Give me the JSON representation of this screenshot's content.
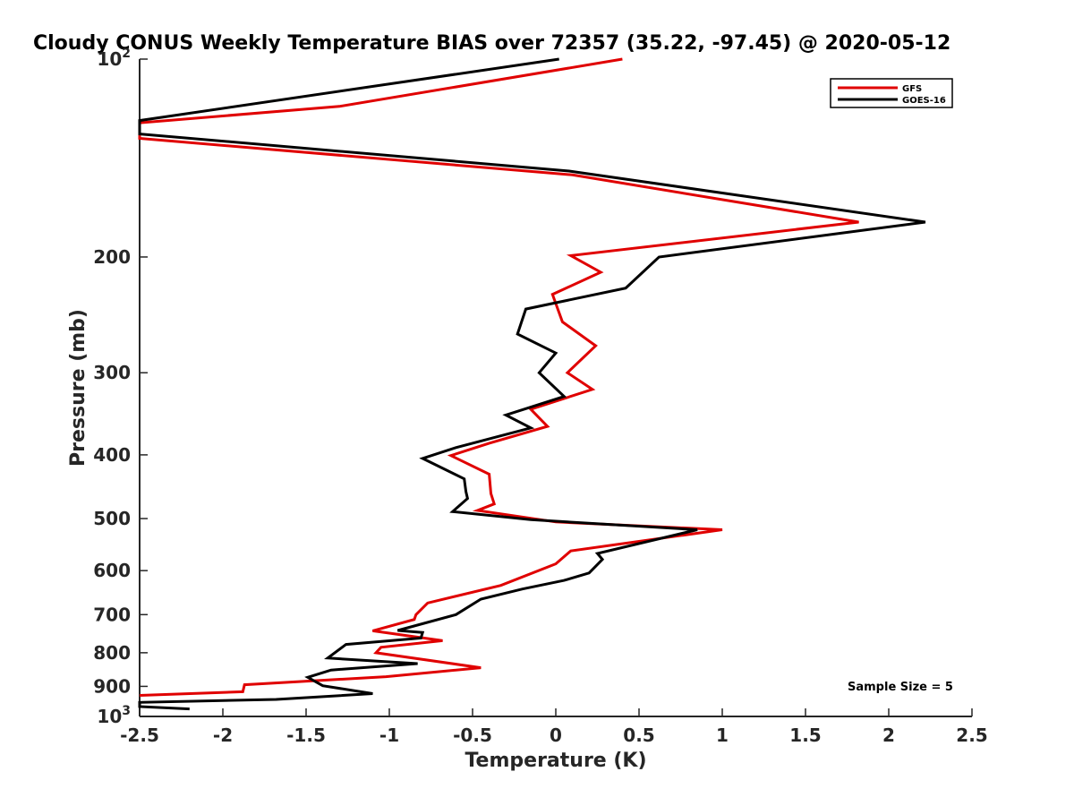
{
  "chart_data": {
    "type": "line",
    "title": "Cloudy CONUS Weekly Temperature BIAS over 72357 (35.22, -97.45) @ 2020-05-12",
    "xlabel": "Temperature (K)",
    "ylabel": "Pressure (mb)",
    "xlim": [
      -2.5,
      2.5
    ],
    "ylim": [
      100,
      1000
    ],
    "yscale": "log",
    "y_reversed": true,
    "grid": false,
    "legend_position": "top-right",
    "x_ticks": [
      -2.5,
      -2,
      -1.5,
      -1,
      -0.5,
      0,
      0.5,
      1,
      1.5,
      2,
      2.5
    ],
    "x_tick_labels": [
      "-2.5",
      "-2",
      "-1.5",
      "-1",
      "-0.5",
      "0",
      "0.5",
      "1",
      "1.5",
      "2",
      "2.5"
    ],
    "y_ticks": [
      100,
      200,
      300,
      400,
      500,
      600,
      700,
      800,
      900,
      1000
    ],
    "y_tick_labels": [
      {
        "base": "10",
        "exp": "2"
      },
      {
        "base": "200",
        "exp": ""
      },
      {
        "base": "300",
        "exp": ""
      },
      {
        "base": "400",
        "exp": ""
      },
      {
        "base": "500",
        "exp": ""
      },
      {
        "base": "600",
        "exp": ""
      },
      {
        "base": "700",
        "exp": ""
      },
      {
        "base": "800",
        "exp": ""
      },
      {
        "base": "900",
        "exp": ""
      },
      {
        "base": "10",
        "exp": "3"
      }
    ],
    "annotation": "Sample Size = 5",
    "series": [
      {
        "name": "GFS",
        "color": "#e00000",
        "points": [
          [
            0.4,
            100
          ],
          [
            -1.3,
            118
          ],
          [
            -2.5,
            125
          ],
          [
            -2.5,
            132
          ],
          [
            0.1,
            150
          ],
          [
            1.82,
            177
          ],
          [
            0.09,
            199
          ],
          [
            0.27,
            211
          ],
          [
            -0.02,
            228
          ],
          [
            0.04,
            251
          ],
          [
            0.24,
            273
          ],
          [
            0.07,
            300
          ],
          [
            0.22,
            318
          ],
          [
            -0.15,
            341
          ],
          [
            -0.05,
            362
          ],
          [
            -0.4,
            384
          ],
          [
            -0.63,
            401
          ],
          [
            -0.4,
            428
          ],
          [
            -0.39,
            458
          ],
          [
            -0.37,
            475
          ],
          [
            -0.47,
            486
          ],
          [
            0.0,
            506
          ],
          [
            1.0,
            520
          ],
          [
            0.09,
            560
          ],
          [
            0.0,
            586
          ],
          [
            -0.33,
            632
          ],
          [
            -0.77,
            672
          ],
          [
            -0.84,
            700
          ],
          [
            -0.85,
            712
          ],
          [
            -1.1,
            741
          ],
          [
            -0.68,
            767
          ],
          [
            -1.05,
            785
          ],
          [
            -1.08,
            800
          ],
          [
            -0.45,
            843
          ],
          [
            -1.02,
            870
          ],
          [
            -1.87,
            895
          ],
          [
            -1.88,
            917
          ],
          [
            -2.5,
            929
          ]
        ]
      },
      {
        "name": "GOES-16",
        "color": "#000000",
        "points": [
          [
            0.02,
            100
          ],
          [
            -2.5,
            124
          ],
          [
            -2.5,
            130
          ],
          [
            0.08,
            148
          ],
          [
            2.22,
            177
          ],
          [
            0.62,
            200
          ],
          [
            0.42,
            223
          ],
          [
            -0.18,
            240
          ],
          [
            -0.23,
            262
          ],
          [
            0.0,
            280
          ],
          [
            -0.1,
            300
          ],
          [
            0.05,
            326
          ],
          [
            -0.3,
            348
          ],
          [
            -0.15,
            364
          ],
          [
            -0.6,
            390
          ],
          [
            -0.8,
            405
          ],
          [
            -0.55,
            435
          ],
          [
            -0.54,
            455
          ],
          [
            -0.53,
            466
          ],
          [
            -0.62,
            488
          ],
          [
            -0.15,
            502
          ],
          [
            0.85,
            520
          ],
          [
            0.25,
            565
          ],
          [
            0.28,
            577
          ],
          [
            0.2,
            605
          ],
          [
            0.05,
            621
          ],
          [
            -0.2,
            640
          ],
          [
            -0.45,
            663
          ],
          [
            -0.6,
            700
          ],
          [
            -0.95,
            740
          ],
          [
            -0.8,
            745
          ],
          [
            -0.81,
            760
          ],
          [
            -1.26,
            777
          ],
          [
            -1.37,
            815
          ],
          [
            -0.83,
            831
          ],
          [
            -1.35,
            850
          ],
          [
            -1.49,
            872
          ],
          [
            -1.4,
            898
          ],
          [
            -1.1,
            923
          ],
          [
            -1.68,
            942
          ],
          [
            -2.5,
            952
          ],
          [
            -2.5,
            956
          ],
          [
            -2.5,
            966
          ],
          [
            -2.2,
            974
          ]
        ]
      }
    ]
  }
}
